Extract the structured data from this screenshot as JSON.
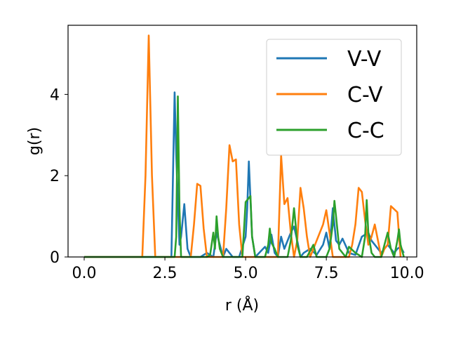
{
  "chart_data": {
    "type": "line",
    "title": "",
    "xlabel": "r (Å)",
    "ylabel": "g(r)",
    "xlim": [
      -0.5,
      10.3
    ],
    "ylim": [
      0,
      5.7
    ],
    "xticks": [
      0.0,
      2.5,
      5.0,
      7.5,
      10.0
    ],
    "xtick_labels": [
      "0.0",
      "2.5",
      "5.0",
      "7.5",
      "10.0"
    ],
    "yticks": [
      0,
      2,
      4
    ],
    "ytick_labels": [
      "0",
      "2",
      "4"
    ],
    "grid": false,
    "legend_position": "top-right",
    "series": [
      {
        "name": "V-V",
        "color": "#1f77b4",
        "x": [
          0,
          2.7,
          2.8,
          2.85,
          2.95,
          3.0,
          3.1,
          3.2,
          3.3,
          3.6,
          3.8,
          4.0,
          4.1,
          4.2,
          4.3,
          4.4,
          4.6,
          4.8,
          5.0,
          5.05,
          5.1,
          5.2,
          5.3,
          5.6,
          5.7,
          5.8,
          5.9,
          6.0,
          6.1,
          6.2,
          6.4,
          6.5,
          6.6,
          6.7,
          6.8,
          7.0,
          7.2,
          7.4,
          7.5,
          7.6,
          7.7,
          7.8,
          7.9,
          8.0,
          8.2,
          8.4,
          8.6,
          8.8,
          8.9,
          9.0,
          9.2,
          9.4,
          9.5,
          9.6,
          9.7,
          9.8,
          9.9
        ],
        "y": [
          0,
          0,
          4.05,
          2.5,
          0.3,
          0.5,
          1.3,
          0.2,
          0,
          0,
          0.1,
          0,
          0.6,
          0.3,
          0,
          0.2,
          0,
          0,
          0.5,
          1.2,
          2.35,
          0.5,
          0,
          0.25,
          0.1,
          0.55,
          0.1,
          0,
          0.5,
          0.2,
          0.6,
          0.75,
          0.4,
          0,
          0.1,
          0.2,
          0.05,
          0.3,
          0.6,
          0.2,
          1.2,
          0.4,
          0.3,
          0.45,
          0.1,
          0.05,
          0.5,
          0.6,
          0.4,
          0.3,
          0.1,
          0.3,
          0.2,
          0.1,
          0.2,
          0.25,
          0.1
        ]
      },
      {
        "name": "C-V",
        "color": "#ff7f0e",
        "x": [
          0,
          1.8,
          1.9,
          2.0,
          2.1,
          2.2,
          3.3,
          3.4,
          3.5,
          3.6,
          3.7,
          3.8,
          4.3,
          4.4,
          4.5,
          4.6,
          4.7,
          4.8,
          4.9,
          6.0,
          6.1,
          6.2,
          6.3,
          6.4,
          6.5,
          6.6,
          6.7,
          6.8,
          6.9,
          7.0,
          7.4,
          7.5,
          7.6,
          7.7,
          7.8,
          8.0,
          8.2,
          8.3,
          8.4,
          8.5,
          8.6,
          8.7,
          8.8,
          8.9,
          9.0,
          9.1,
          9.2,
          9.3,
          9.4,
          9.5,
          9.7,
          9.8
        ],
        "y": [
          0,
          0,
          2.0,
          5.45,
          2.0,
          0,
          0,
          0.8,
          1.8,
          1.75,
          0.7,
          0,
          0,
          1.2,
          2.75,
          2.35,
          2.4,
          0.8,
          0,
          0,
          2.5,
          1.3,
          1.45,
          0.6,
          0,
          0.4,
          1.7,
          1.2,
          0.5,
          0,
          0.8,
          1.15,
          0.6,
          0,
          0,
          0,
          0,
          0.3,
          0.8,
          1.7,
          1.6,
          0.9,
          0.3,
          0.5,
          0.8,
          0.4,
          0,
          0.2,
          0.3,
          1.25,
          1.1,
          0
        ]
      },
      {
        "name": "C-C",
        "color": "#2ca02c",
        "x": [
          0,
          2.8,
          2.85,
          2.9,
          2.95,
          3.0,
          3.8,
          3.9,
          4.0,
          4.05,
          4.1,
          4.15,
          4.2,
          4.3,
          4.9,
          5.0,
          5.1,
          5.15,
          5.2,
          5.3,
          5.6,
          5.7,
          5.75,
          5.8,
          5.9,
          6.0,
          6.3,
          6.4,
          6.5,
          6.55,
          6.6,
          6.7,
          6.9,
          7.0,
          7.1,
          7.2,
          7.5,
          7.6,
          7.7,
          7.75,
          7.8,
          7.9,
          8.1,
          8.2,
          8.4,
          8.6,
          8.7,
          8.75,
          8.8,
          8.9,
          9.0,
          9.2,
          9.3,
          9.4,
          9.5,
          9.6,
          9.7,
          9.75,
          9.8,
          9.9
        ],
        "y": [
          0,
          0,
          0.5,
          3.95,
          1.2,
          0,
          0,
          0.05,
          0.6,
          0.2,
          1.0,
          0.5,
          0.2,
          0,
          0,
          1.35,
          1.45,
          1.5,
          0.5,
          0,
          0,
          0.3,
          0.7,
          0.35,
          0.2,
          0,
          0,
          0.4,
          1.2,
          0.8,
          0.3,
          0,
          0,
          0.15,
          0.3,
          0,
          0,
          0.2,
          0.8,
          1.38,
          1.0,
          0.2,
          0,
          0.25,
          0.1,
          0,
          0.5,
          1.4,
          0.6,
          0.1,
          0,
          0,
          0.3,
          0.6,
          0.2,
          0,
          0.4,
          0.68,
          0.3,
          0
        ]
      }
    ]
  }
}
